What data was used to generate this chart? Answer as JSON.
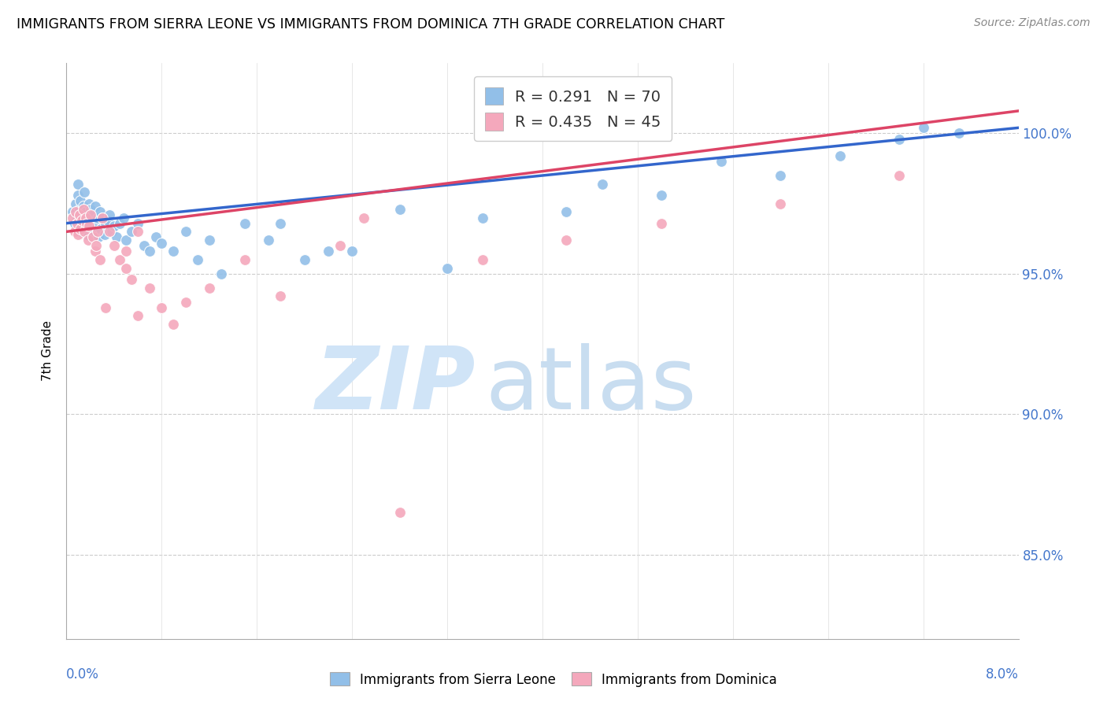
{
  "title": "IMMIGRANTS FROM SIERRA LEONE VS IMMIGRANTS FROM DOMINICA 7TH GRADE CORRELATION CHART",
  "source": "Source: ZipAtlas.com",
  "ylabel": "7th Grade",
  "y_ticks": [
    85.0,
    90.0,
    95.0,
    100.0
  ],
  "y_tick_labels": [
    "85.0%",
    "90.0%",
    "95.0%",
    "100.0%"
  ],
  "legend1_r": "0.291",
  "legend1_n": "70",
  "legend2_r": "0.435",
  "legend2_n": "45",
  "sierra_leone_color": "#92bfe8",
  "dominica_color": "#f4a8bc",
  "sierra_leone_line_color": "#3366cc",
  "dominica_line_color": "#dd4466",
  "watermark_zip_color": "#d0e4f7",
  "watermark_atlas_color": "#c8ddf0",
  "x_min": 0.0,
  "x_max": 8.0,
  "y_min": 82.0,
  "y_max": 102.5,
  "sl_x": [
    0.05,
    0.07,
    0.08,
    0.09,
    0.1,
    0.1,
    0.11,
    0.12,
    0.12,
    0.13,
    0.13,
    0.14,
    0.15,
    0.15,
    0.16,
    0.17,
    0.18,
    0.18,
    0.19,
    0.2,
    0.2,
    0.21,
    0.22,
    0.23,
    0.24,
    0.25,
    0.26,
    0.27,
    0.28,
    0.29,
    0.3,
    0.32,
    0.33,
    0.35,
    0.36,
    0.38,
    0.4,
    0.42,
    0.45,
    0.48,
    0.5,
    0.55,
    0.6,
    0.65,
    0.7,
    0.75,
    0.8,
    0.9,
    1.0,
    1.1,
    1.2,
    1.3,
    1.5,
    1.7,
    2.0,
    2.4,
    2.8,
    3.5,
    4.5,
    5.0,
    5.5,
    6.0,
    6.5,
    7.0,
    7.2,
    7.5,
    3.2,
    4.2,
    1.8,
    2.2
  ],
  "sl_y": [
    97.2,
    96.8,
    97.5,
    97.0,
    97.8,
    98.2,
    97.3,
    96.5,
    97.6,
    96.9,
    97.1,
    97.4,
    96.7,
    97.9,
    97.2,
    96.4,
    97.0,
    96.8,
    97.5,
    96.6,
    97.3,
    96.9,
    97.1,
    96.5,
    97.4,
    96.8,
    97.0,
    96.3,
    97.2,
    96.6,
    97.0,
    96.4,
    96.8,
    96.9,
    97.1,
    96.5,
    96.7,
    96.3,
    96.8,
    97.0,
    96.2,
    96.5,
    96.8,
    96.0,
    95.8,
    96.3,
    96.1,
    95.8,
    96.5,
    95.5,
    96.2,
    95.0,
    96.8,
    96.2,
    95.5,
    95.8,
    97.3,
    97.0,
    98.2,
    97.8,
    99.0,
    98.5,
    99.2,
    99.8,
    100.2,
    100.0,
    95.2,
    97.2,
    96.8,
    95.8
  ],
  "dom_x": [
    0.05,
    0.07,
    0.08,
    0.09,
    0.1,
    0.11,
    0.12,
    0.13,
    0.14,
    0.15,
    0.16,
    0.17,
    0.18,
    0.19,
    0.2,
    0.22,
    0.24,
    0.26,
    0.28,
    0.3,
    0.33,
    0.36,
    0.4,
    0.45,
    0.5,
    0.6,
    0.7,
    0.8,
    0.9,
    1.0,
    1.2,
    1.5,
    1.8,
    2.3,
    2.8,
    3.5,
    4.2,
    5.0,
    6.0,
    7.0,
    0.5,
    0.55,
    0.6,
    2.5,
    0.25
  ],
  "dom_y": [
    97.0,
    96.5,
    97.2,
    96.8,
    96.4,
    97.1,
    96.6,
    96.9,
    97.3,
    96.5,
    97.0,
    96.8,
    96.2,
    96.7,
    97.1,
    96.3,
    95.8,
    96.5,
    95.5,
    97.0,
    93.8,
    96.5,
    96.0,
    95.5,
    95.8,
    93.5,
    94.5,
    93.8,
    93.2,
    94.0,
    94.5,
    95.5,
    94.2,
    96.0,
    86.5,
    95.5,
    96.2,
    96.8,
    97.5,
    98.5,
    95.2,
    94.8,
    96.5,
    97.0,
    96.0
  ]
}
